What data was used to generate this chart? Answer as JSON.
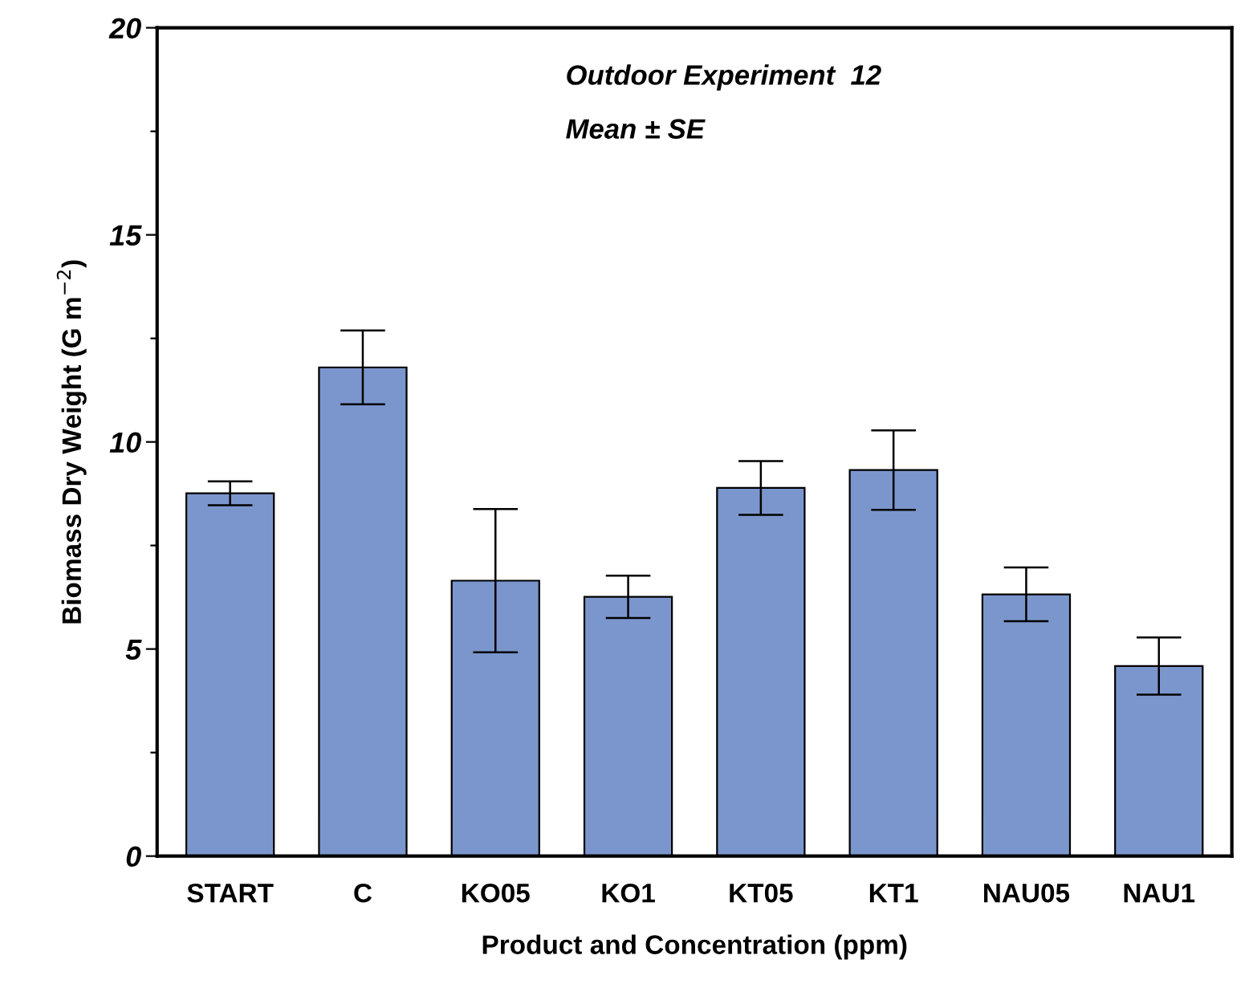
{
  "chart_data": {
    "type": "bar",
    "xlabel": "Product and Concentration (ppm)",
    "ylabel": "Biomass Dry Weight (G m$^{−2}$)",
    "annotations": [
      "Outdoor Experiment  12",
      "Mean ± SE"
    ],
    "categories": [
      "START",
      "C",
      "KO05",
      "KO1",
      "KT05",
      "KT1",
      "NAU05",
      "NAU1"
    ],
    "values": [
      8.76,
      11.8,
      6.65,
      6.26,
      8.89,
      9.32,
      6.32,
      4.59
    ],
    "errors": [
      0.29,
      0.89,
      1.73,
      0.51,
      0.65,
      0.96,
      0.65,
      0.69
    ],
    "color": "#7b96cc",
    "ylim": [
      0,
      20
    ],
    "yticks": [
      0,
      {
        "value": 2.5,
        "label": null
      },
      5,
      {
        "value": 7.5,
        "label": null
      },
      10,
      {
        "value": 12.5,
        "label": null
      },
      15,
      {
        "value": 17.5,
        "label": null
      },
      20
    ],
    "grid": false,
    "legend": false
  }
}
